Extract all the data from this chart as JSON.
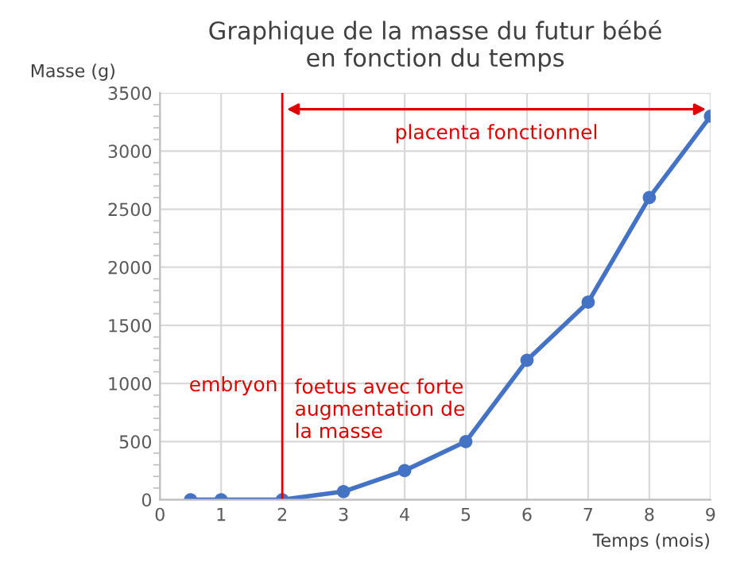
{
  "chart_data": {
    "type": "line",
    "title": "Graphique de la masse du futur bébé\nen fonction du temps",
    "xlabel": "Temps (mois)",
    "ylabel": "Masse (g)",
    "x": [
      0.5,
      1,
      2,
      3,
      4,
      5,
      6,
      7,
      8,
      9
    ],
    "series": [
      {
        "color": "#4472c4",
        "values": [
          0,
          0,
          0,
          70,
          250,
          500,
          1200,
          1700,
          2600,
          3300
        ]
      }
    ],
    "xlim": [
      0,
      9
    ],
    "xticks": [
      0,
      1,
      2,
      3,
      4,
      5,
      6,
      7,
      8,
      9
    ],
    "ylim": [
      0,
      3500
    ],
    "yticks": [
      0,
      500,
      1000,
      1500,
      2000,
      2500,
      3000,
      3500
    ],
    "grid": true,
    "marker": "circle",
    "line_style": "solid",
    "ref_lines": [
      {
        "axis": "x",
        "value": 2,
        "color": "#e00000"
      }
    ],
    "annotations": [
      "placenta fonctionnel",
      "embryon",
      "foetus avec forte\naugmentation de\nla masse"
    ]
  }
}
